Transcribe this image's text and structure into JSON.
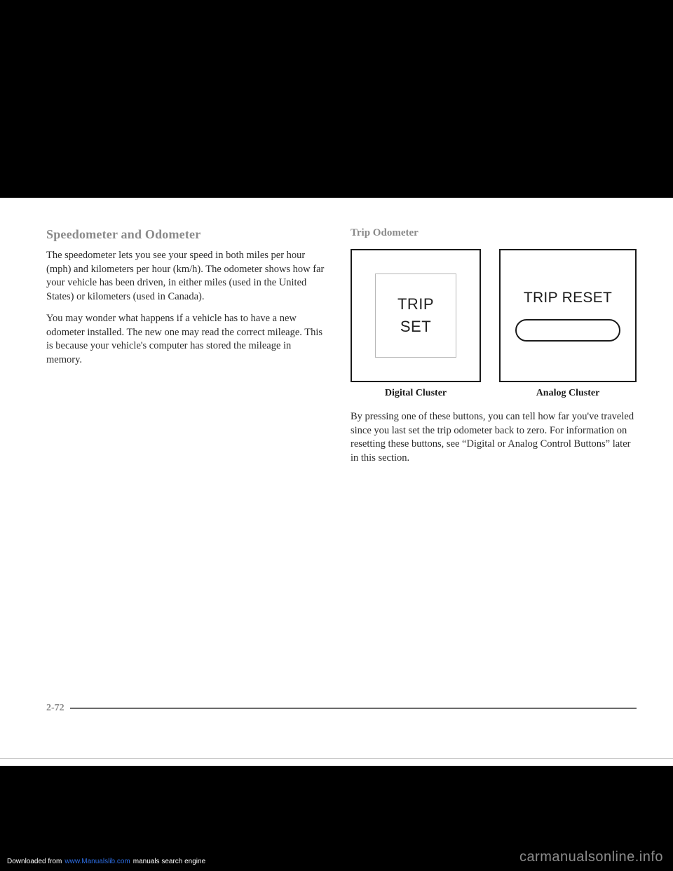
{
  "leftColumn": {
    "heading": "Speedometer and Odometer",
    "para1": "The speedometer lets you see your speed in both miles per hour (mph) and kilometers per hour (km/h). The odometer shows how far your vehicle has been driven, in either miles (used in the United States) or kilometers (used in Canada).",
    "para2": "You may wonder what happens if a vehicle has to have a new odometer installed. The new one may read the correct mileage. This is because your vehicle's computer has stored the mileage in memory."
  },
  "rightColumn": {
    "subHeading": "Trip Odometer",
    "digitalButton": {
      "line1": "TRIP",
      "line2": "SET"
    },
    "analogLabel": "TRIP RESET",
    "caption1": "Digital Cluster",
    "caption2": "Analog Cluster",
    "para": "By pressing one of these buttons, you can tell how far you've traveled since you last set the trip odometer back to zero. For information on resetting these buttons, see “Digital or Analog Control Buttons” later in this section."
  },
  "pageNumber": "2-72",
  "footer": {
    "pre": "Downloaded from",
    "link": "www.Manualslib.com",
    "post": "manuals search engine"
  },
  "watermark": "carmanualsonline.info"
}
